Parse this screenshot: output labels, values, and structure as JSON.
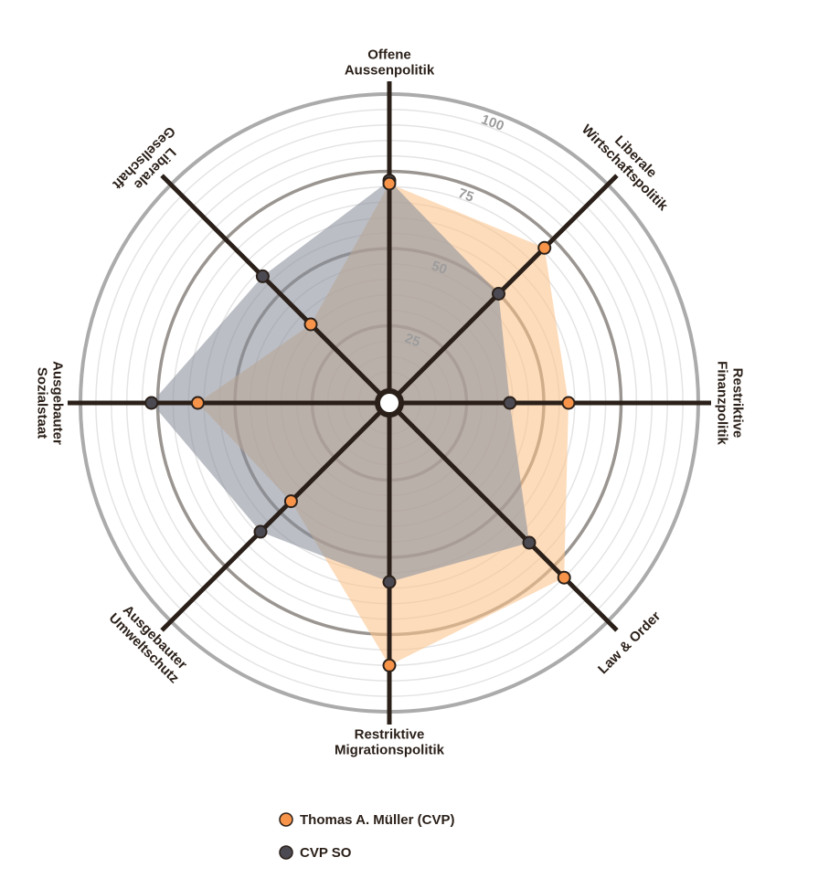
{
  "chart_data": {
    "type": "radar",
    "axes": [
      {
        "label": [
          "Offene",
          "Aussenpolitik"
        ]
      },
      {
        "label": [
          "Liberale",
          "Wirtschaftspolitik"
        ]
      },
      {
        "label": [
          "Restriktive",
          "Finanzpolitik"
        ]
      },
      {
        "label": [
          "Law & Order"
        ]
      },
      {
        "label": [
          "Restriktive",
          "Migrationspolitik"
        ]
      },
      {
        "label": [
          "Ausgebauter",
          "Umweltschutz"
        ]
      },
      {
        "label": [
          "Ausgebauter",
          "Sozialstaat"
        ]
      },
      {
        "label": [
          "Liberale",
          "Gesellschaft"
        ]
      }
    ],
    "rlim": [
      0,
      100
    ],
    "ticks": [
      "25",
      "50",
      "75",
      "100"
    ],
    "tick_values": [
      25,
      50,
      75,
      100
    ],
    "series": [
      {
        "name": "Thomas A. Müller (CVP)",
        "color": "#f7944a",
        "fill": "#fbc48e",
        "values": [
          71,
          71,
          58,
          80,
          85,
          45,
          62,
          36
        ]
      },
      {
        "name": "CVP SO",
        "color": "#4b4a52",
        "fill": "#8e939e",
        "values": [
          72,
          50,
          39,
          64,
          58,
          59,
          77,
          58
        ]
      }
    ],
    "legend_position": "bottom-left",
    "colors": {
      "axis": "#2b2019",
      "ring_major": "#a6a6a6",
      "ring_minor": "#e4e4e4"
    }
  }
}
